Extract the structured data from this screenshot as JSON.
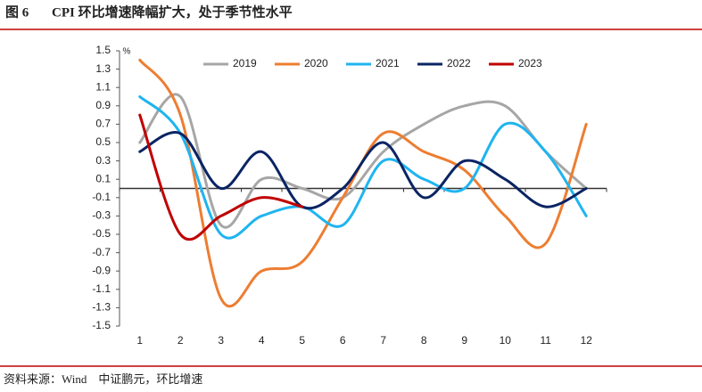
{
  "chart_data": {
    "type": "line",
    "figure_label": "图 6",
    "title": "CPI 环比增速降幅扩大，处于季节性水平",
    "source": "资料来源：Wind　中证鹏元，环比增速",
    "y_unit": "%",
    "categories": [
      "1",
      "2",
      "3",
      "4",
      "5",
      "6",
      "7",
      "8",
      "9",
      "10",
      "11",
      "12"
    ],
    "series": [
      {
        "name": "2019",
        "color": "#a6a6a6",
        "values": [
          0.5,
          1.0,
          -0.4,
          0.1,
          0.0,
          -0.1,
          0.4,
          0.7,
          0.9,
          0.9,
          0.4,
          0.0
        ]
      },
      {
        "name": "2020",
        "color": "#ed7d31",
        "values": [
          1.4,
          0.8,
          -1.2,
          -0.9,
          -0.8,
          -0.1,
          0.6,
          0.4,
          0.2,
          -0.3,
          -0.6,
          0.7
        ]
      },
      {
        "name": "2021",
        "color": "#1fb4f0",
        "values": [
          1.0,
          0.6,
          -0.5,
          -0.3,
          -0.2,
          -0.4,
          0.3,
          0.1,
          0.0,
          0.7,
          0.4,
          -0.3
        ]
      },
      {
        "name": "2022",
        "color": "#0a2463",
        "values": [
          0.4,
          0.6,
          0.0,
          0.4,
          -0.2,
          0.0,
          0.5,
          -0.1,
          0.3,
          0.1,
          -0.2,
          0.0
        ]
      },
      {
        "name": "2023",
        "color": "#c00000",
        "values": [
          0.8,
          -0.5,
          -0.3,
          -0.1,
          -0.2,
          null,
          null,
          null,
          null,
          null,
          null,
          null
        ]
      }
    ],
    "ylim": [
      -1.5,
      1.5
    ],
    "yticks": [
      1.5,
      1.3,
      1.1,
      0.9,
      0.7,
      0.5,
      0.3,
      0.1,
      -0.1,
      -0.3,
      -0.5,
      -0.7,
      -0.9,
      -1.1,
      -1.3,
      -1.5
    ],
    "legend": "top",
    "smooth": true
  }
}
